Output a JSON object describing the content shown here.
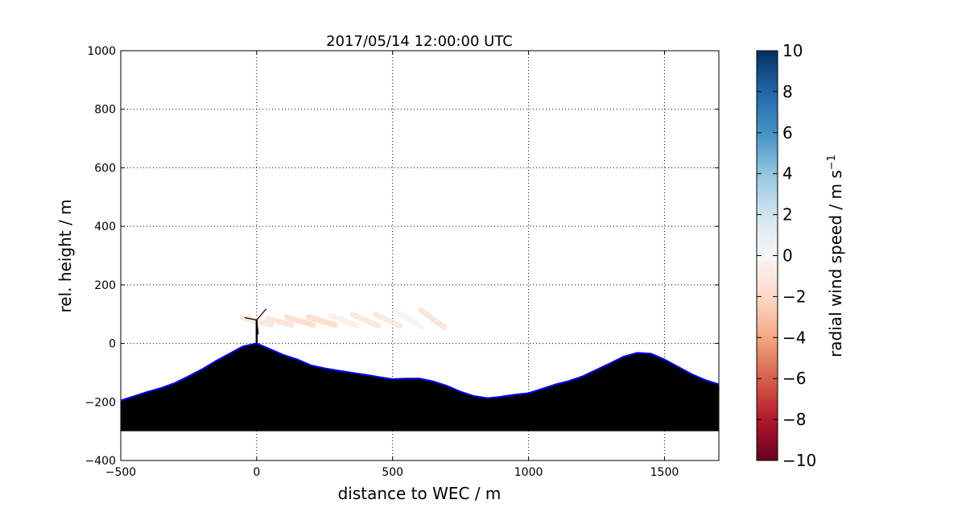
{
  "chart_data": {
    "type": "line",
    "title": "2017/05/14 12:00:00 UTC",
    "xlabel": "distance to WEC / m",
    "ylabel": "rel. height / m",
    "xlim": [
      -500,
      1700
    ],
    "ylim": [
      -400,
      1000
    ],
    "xticks": [
      -500,
      0,
      500,
      1000,
      1500
    ],
    "yticks": [
      -400,
      -200,
      0,
      200,
      400,
      600,
      800,
      1000
    ],
    "xtick_labels": [
      "−500",
      "0",
      "500",
      "1000",
      "1500"
    ],
    "ytick_labels": [
      "−400",
      "−200",
      "0",
      "200",
      "400",
      "600",
      "800",
      "1000"
    ],
    "grid": true,
    "terrain": {
      "fill_color": "#000000",
      "outline_color": "#0000ff",
      "base": -300,
      "x": [
        -500,
        -450,
        -400,
        -350,
        -300,
        -250,
        -200,
        -150,
        -100,
        -50,
        0,
        50,
        100,
        150,
        200,
        250,
        300,
        350,
        400,
        450,
        500,
        550,
        600,
        650,
        700,
        750,
        800,
        850,
        900,
        950,
        1000,
        1050,
        1100,
        1150,
        1200,
        1250,
        1300,
        1350,
        1400,
        1450,
        1500,
        1550,
        1600,
        1650,
        1700
      ],
      "y": [
        -195,
        -180,
        -165,
        -152,
        -135,
        -112,
        -88,
        -60,
        -35,
        -10,
        0,
        -20,
        -40,
        -55,
        -75,
        -85,
        -93,
        -100,
        -107,
        -115,
        -122,
        -120,
        -120,
        -130,
        -145,
        -165,
        -180,
        -187,
        -182,
        -175,
        -170,
        -155,
        -140,
        -128,
        -112,
        -90,
        -68,
        -45,
        -32,
        -35,
        -55,
        -80,
        -105,
        -125,
        -140
      ]
    },
    "turbine": {
      "x": 0,
      "hub_height": 80
    },
    "wind_segments": [
      {
        "x": [
          -50,
          54
        ],
        "y": [
          88,
          63
        ],
        "value": -1.5
      },
      {
        "x": [
          42,
          128
        ],
        "y": [
          85,
          63
        ],
        "value": -1.8
      },
      {
        "x": [
          110,
          208
        ],
        "y": [
          90,
          63
        ],
        "value": -2.2
      },
      {
        "x": [
          190,
          288
        ],
        "y": [
          90,
          63
        ],
        "value": -2.2
      },
      {
        "x": [
          273,
          368
        ],
        "y": [
          95,
          62
        ],
        "value": -0.7
      },
      {
        "x": [
          353,
          448
        ],
        "y": [
          99,
          60
        ],
        "value": -1.6
      },
      {
        "x": [
          436,
          527
        ],
        "y": [
          99,
          60
        ],
        "value": -1.5
      },
      {
        "x": [
          516,
          607
        ],
        "y": [
          107,
          58
        ],
        "value": -0.4
      },
      {
        "x": [
          605,
          690
        ],
        "y": [
          113,
          55
        ],
        "value": -1.8
      }
    ],
    "colorbar": {
      "label": "radial wind speed / m s",
      "label_superscript": "−1",
      "range": [
        -10,
        10
      ],
      "ticks": [
        -10,
        -8,
        -6,
        -4,
        -2,
        0,
        2,
        4,
        6,
        8,
        10
      ],
      "tick_labels": [
        "−10",
        "−8",
        "−6",
        "−4",
        "−2",
        "0",
        "2",
        "4",
        "6",
        "8",
        "10"
      ],
      "colormap": [
        "#67001f",
        "#b2182b",
        "#d6604d",
        "#f4a582",
        "#fddbc7",
        "#f7f7f7",
        "#d1e5f0",
        "#92c5de",
        "#4393c3",
        "#2166ac",
        "#053061"
      ]
    }
  }
}
